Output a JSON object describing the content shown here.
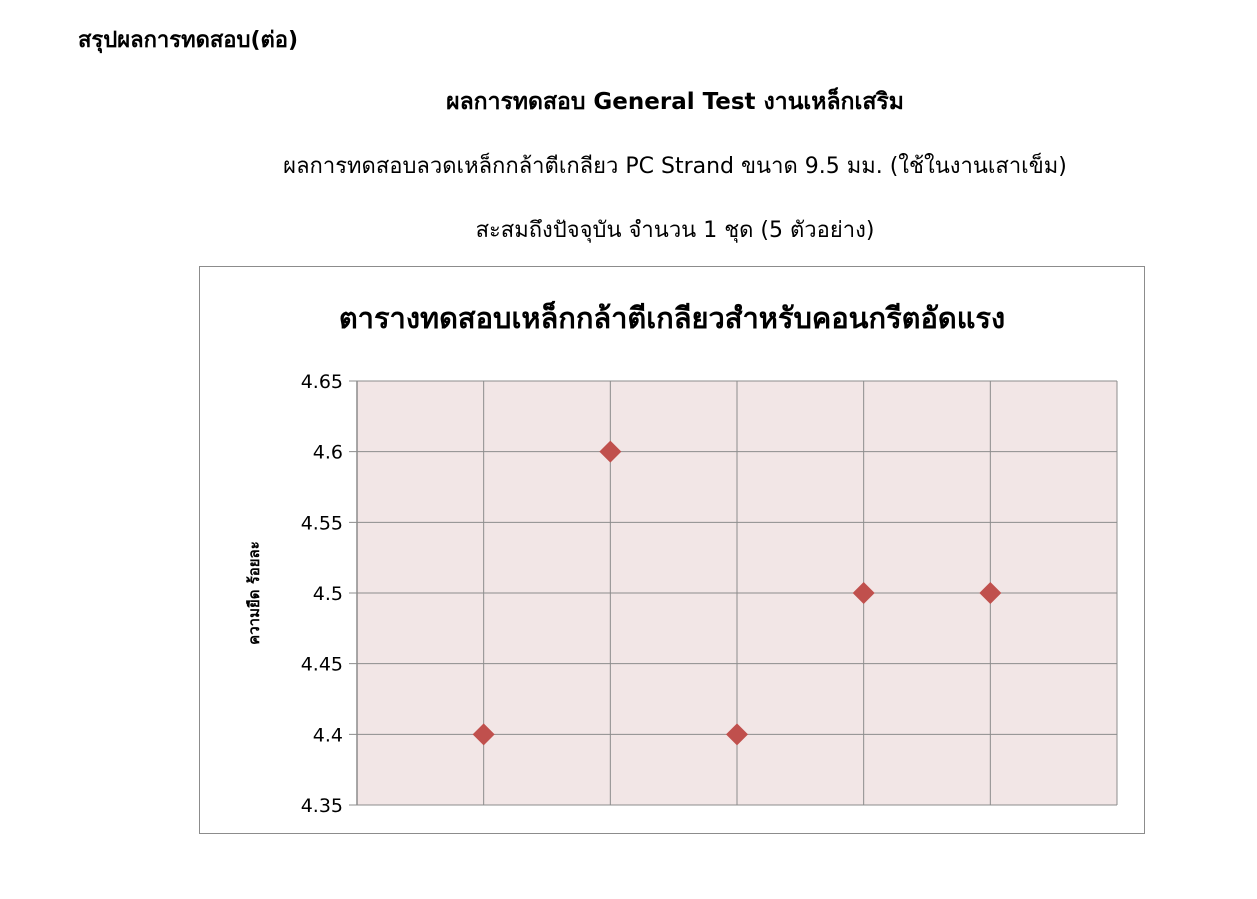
{
  "heading": "สรุปผลการทดสอบ(ต่อ)",
  "subheading": "ผลการทดสอบ General Test งานเหล็กเสริม",
  "description": "ผลการทดสอบลวดเหล็กกล้าตีเกลียว PC Strand ขนาด 9.5 มม. (ใช้ในงานเสาเข็ม)",
  "summary": "สะสมถึงปัจจุบัน จำนวน 1 ชุด (5 ตัวอย่าง)",
  "chart_data": {
    "type": "scatter",
    "title": "ตารางทดสอบเหล็กกล้าตีเกลียวสำหรับคอนกรีตอัดแรง",
    "xlabel": "",
    "ylabel": "ความยืด ร้อยละ",
    "x": [
      1,
      2,
      3,
      4,
      5
    ],
    "y": [
      4.4,
      4.6,
      4.4,
      4.5,
      4.5
    ],
    "xlim": [
      0,
      6
    ],
    "ylim": [
      4.35,
      4.65
    ],
    "yticks": [
      "4.35",
      "4.4",
      "4.45",
      "4.5",
      "4.55",
      "4.6",
      "4.65"
    ],
    "grid": true,
    "legend": "none",
    "marker": "diamond",
    "colors": {
      "marker": "#c0504d",
      "plot_bg": "#f2e6e6",
      "grid": "#8c8c8c"
    }
  }
}
